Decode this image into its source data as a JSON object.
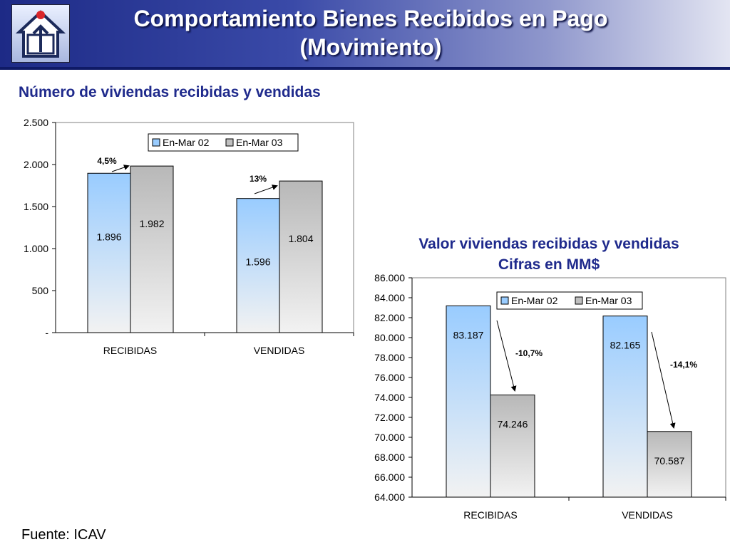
{
  "header": {
    "title_line1": "Comportamiento Bienes Recibidos en Pago",
    "title_line2": "(Movimiento)",
    "logo_icon": "house-logo-icon"
  },
  "source": "Fuente: ICAV",
  "colors": {
    "series1": "#99ccff",
    "series2": "#c0c0c0",
    "title": "#1f2a8c",
    "header": "#1d2a86"
  },
  "chart_data": [
    {
      "type": "bar",
      "title": "Número de viviendas recibidas y vendidas",
      "categories": [
        "RECIBIDAS",
        "VENDIDAS"
      ],
      "series": [
        {
          "name": "En-Mar 02",
          "values": [
            1896,
            1596
          ],
          "labels": [
            "1.896",
            "1.596"
          ]
        },
        {
          "name": "En-Mar 03",
          "values": [
            1982,
            1804
          ],
          "labels": [
            "1.982",
            "1.804"
          ]
        }
      ],
      "ylim": [
        0,
        2500
      ],
      "yticks": [
        "-",
        "500",
        "1.000",
        "1.500",
        "2.000",
        "2.500"
      ],
      "annotations": [
        "4,5%",
        "13%"
      ],
      "legend": "top-right",
      "grid": false
    },
    {
      "type": "bar",
      "title": "Valor viviendas recibidas y vendidas",
      "subtitle": "Cifras en MM$",
      "categories": [
        "RECIBIDAS",
        "VENDIDAS"
      ],
      "series": [
        {
          "name": "En-Mar 02",
          "values": [
            83187,
            82165
          ],
          "labels": [
            "83.187",
            "82.165"
          ]
        },
        {
          "name": "En-Mar 03",
          "values": [
            74246,
            70587
          ],
          "labels": [
            "74.246",
            "70.587"
          ]
        }
      ],
      "ylim": [
        64000,
        86000
      ],
      "yticks": [
        "64.000",
        "66.000",
        "68.000",
        "70.000",
        "72.000",
        "74.000",
        "76.000",
        "78.000",
        "80.000",
        "82.000",
        "84.000",
        "86.000"
      ],
      "annotations": [
        "-10,7%",
        "-14,1%"
      ],
      "legend": "top-right",
      "grid": false
    }
  ]
}
